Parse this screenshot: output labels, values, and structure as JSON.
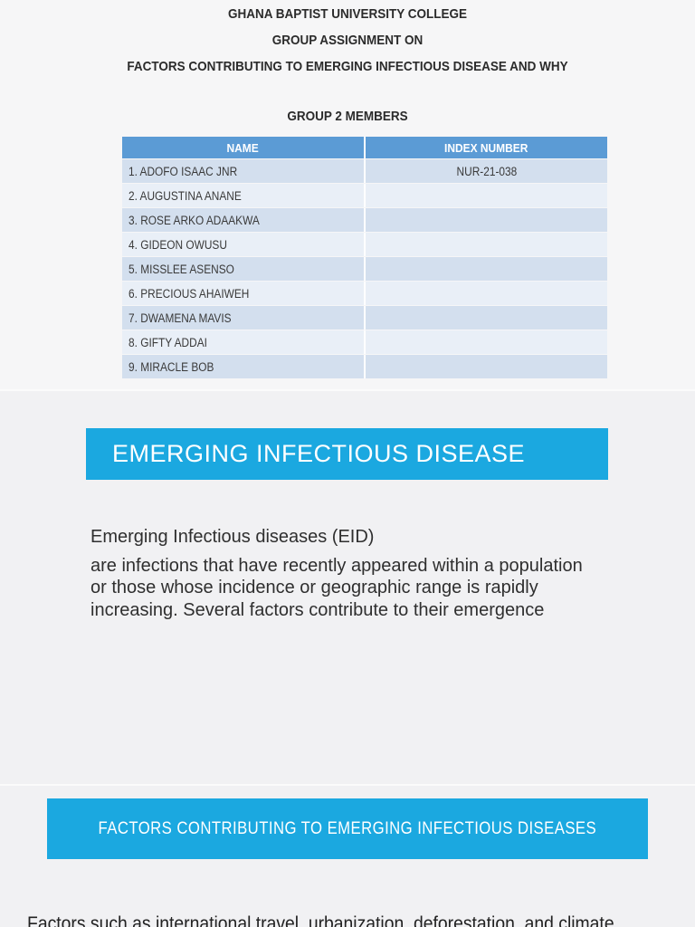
{
  "page1": {
    "title_lines": [
      "GHANA BAPTIST UNIVERSITY COLLEGE",
      "GROUP ASSIGNMENT ON",
      "FACTORS CONTRIBUTING TO EMERGING INFECTIOUS DISEASE AND WHY"
    ],
    "members_heading": "GROUP 2 MEMBERS",
    "table": {
      "headers": [
        "NAME",
        "INDEX NUMBER"
      ],
      "rows": [
        {
          "name": "1. ADOFO ISAAC JNR",
          "index": "NUR-21-038"
        },
        {
          "name": "2. AUGUSTINA ANANE",
          "index": ""
        },
        {
          "name": "3. ROSE ARKO ADAAKWA",
          "index": ""
        },
        {
          "name": "4. GIDEON OWUSU",
          "index": ""
        },
        {
          "name": "5. MISSLEE ASENSO",
          "index": ""
        },
        {
          "name": "6. PRECIOUS AHAIWEH",
          "index": ""
        },
        {
          "name": "7. DWAMENA MAVIS",
          "index": ""
        },
        {
          "name": "8. GIFTY ADDAI",
          "index": ""
        },
        {
          "name": "9. MIRACLE BOB",
          "index": ""
        }
      ]
    }
  },
  "page2": {
    "banner": "EMERGING INFECTIOUS DISEASE",
    "heading": "Emerging Infectious diseases (EID)",
    "body": "are infections that have recently appeared within a population or those whose incidence or geographic range is rapidly increasing. Several factors contribute to their emergence"
  },
  "page3": {
    "banner": "FACTORS CONTRIBUTING TO EMERGING INFECTIOUS DISEASES",
    "body_partial": "Factors such as international travel, urbanization, deforestation, and climate"
  },
  "colors": {
    "banner_cyan": "#1BA8E0",
    "table_header_blue": "#5B9BD5",
    "table_row_odd": "#D3DFEE",
    "table_row_even": "#E9EFF7",
    "page_background": "#F1F1F3",
    "page1_background": "#F6F6F7"
  }
}
